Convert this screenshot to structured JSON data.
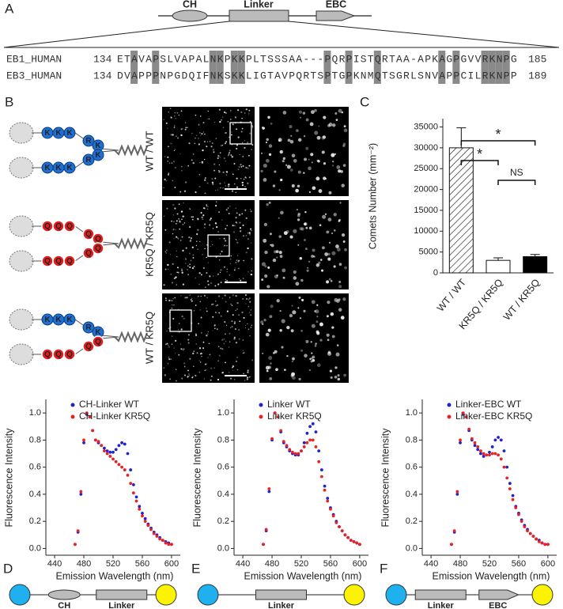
{
  "panel_a": {
    "panel": "A",
    "domains": [
      "CH",
      "Linker",
      "EBC"
    ],
    "alignment": [
      {
        "name": "EB1_HUMAN",
        "start": "134",
        "sequence": "ETAVAPSLVAPALNKPKKPLTSSSAA---PQRPISTQRTAA-APKAGPGVVRKNPG",
        "end": "185"
      },
      {
        "name": "EB3_HUMAN",
        "start": "134",
        "sequence": "DVAPPPNPGDQIFNKSKKLIGTAVPQRTSPTGPKNMQTSGRLSNVAPPCILRKNPP",
        "end": "189"
      }
    ]
  },
  "panel_b": {
    "panel": "B",
    "rows": [
      {
        "label": "WT / WT",
        "top": [
          "K",
          "K",
          "K",
          "R",
          "K"
        ],
        "bottom": [
          "K",
          "K",
          "K",
          "R",
          "K"
        ]
      },
      {
        "label": "KR5Q / KR5Q",
        "top": [
          "Q",
          "Q",
          "Q",
          "Q",
          "Q"
        ],
        "bottom": [
          "Q",
          "Q",
          "Q",
          "Q",
          "Q"
        ]
      },
      {
        "label": "WT / KR5Q",
        "top": [
          "K",
          "K",
          "K",
          "R",
          "K"
        ],
        "bottom": [
          "Q",
          "Q",
          "Q",
          "Q",
          "Q"
        ]
      }
    ]
  },
  "chart_data": [
    {
      "type": "bar",
      "panel": "C",
      "y_label": "Comets Number (mm⁻²)",
      "categories": [
        "WT / WT",
        "KR5Q / KR5Q",
        "WT / KR5Q"
      ],
      "values": [
        30000,
        3000,
        3900
      ],
      "errors": [
        4800,
        600,
        500
      ],
      "colors": [
        "#ffffff",
        "#ffffff",
        "#000000"
      ],
      "hatched": [
        true,
        false,
        false
      ],
      "ylim": [
        0,
        37000
      ],
      "yticks": [
        0,
        5000,
        10000,
        15000,
        20000,
        25000,
        30000,
        35000
      ],
      "annotations": [
        "*",
        "*",
        "NS"
      ]
    },
    {
      "type": "scatter",
      "panel": "D",
      "x_label": "Emission Wavelength (nm)",
      "y_label": "Fluorescence Intensity",
      "legend": "upper right",
      "construct": [
        "CH",
        "Linker"
      ],
      "x": [
        468,
        472,
        476,
        480,
        484,
        488,
        492,
        496,
        500,
        504,
        508,
        512,
        516,
        520,
        524,
        528,
        532,
        536,
        540,
        544,
        548,
        552,
        556,
        560,
        564,
        568,
        572,
        576,
        580,
        584,
        588,
        592,
        596,
        600
      ],
      "series": [
        {
          "name": "CH-Linker WT",
          "color": "#2222cc",
          "values": [
            0.03,
            0.12,
            0.4,
            0.78,
            0.99,
            0.97,
            0.87,
            0.8,
            0.78,
            0.76,
            0.74,
            0.72,
            0.71,
            0.71,
            0.73,
            0.76,
            0.78,
            0.77,
            0.7,
            0.58,
            0.47,
            0.38,
            0.31,
            0.26,
            0.22,
            0.18,
            0.15,
            0.12,
            0.1,
            0.08,
            0.06,
            0.05,
            0.04,
            0.03
          ]
        },
        {
          "name": "CH-Linker KR5Q",
          "color": "#e82222",
          "values": [
            0.03,
            0.13,
            0.42,
            0.8,
            1.0,
            0.97,
            0.87,
            0.8,
            0.79,
            0.76,
            0.72,
            0.7,
            0.68,
            0.66,
            0.64,
            0.62,
            0.6,
            0.58,
            0.54,
            0.48,
            0.41,
            0.35,
            0.29,
            0.24,
            0.2,
            0.17,
            0.14,
            0.11,
            0.09,
            0.07,
            0.06,
            0.04,
            0.03,
            0.03
          ]
        }
      ],
      "xlim": [
        428,
        612
      ],
      "ylim": [
        -0.05,
        1.1
      ],
      "xticks": [
        440,
        480,
        520,
        560,
        600
      ],
      "yticks": [
        {
          "value": 0,
          "label": "0.0"
        },
        {
          "value": 0.2,
          "label": "0.2"
        },
        {
          "value": 0.4,
          "label": "0.4"
        },
        {
          "value": 0.6,
          "label": "0.6"
        },
        {
          "value": 0.8,
          "label": "0.8"
        },
        {
          "value": 1,
          "label": "1.0"
        }
      ]
    },
    {
      "type": "scatter",
      "panel": "E",
      "x_label": "Emission Wavelength (nm)",
      "y_label": "Fluorescence Intensity",
      "legend": "upper right",
      "construct": [
        "Linker"
      ],
      "x": [
        468,
        472,
        476,
        480,
        484,
        488,
        492,
        496,
        500,
        504,
        508,
        512,
        516,
        520,
        524,
        528,
        532,
        536,
        540,
        544,
        548,
        552,
        556,
        560,
        564,
        568,
        572,
        576,
        580,
        584,
        588,
        592,
        596,
        600
      ],
      "series": [
        {
          "name": "Linker WT",
          "color": "#2222cc",
          "values": [
            0.03,
            0.13,
            0.42,
            0.8,
            1.0,
            0.97,
            0.86,
            0.78,
            0.75,
            0.72,
            0.7,
            0.69,
            0.69,
            0.72,
            0.78,
            0.85,
            0.9,
            0.92,
            0.86,
            0.72,
            0.58,
            0.46,
            0.37,
            0.3,
            0.25,
            0.2,
            0.16,
            0.13,
            0.1,
            0.08,
            0.06,
            0.05,
            0.04,
            0.03
          ]
        },
        {
          "name": "Linker KR5Q",
          "color": "#e82222",
          "values": [
            0.03,
            0.14,
            0.44,
            0.81,
            1.0,
            0.97,
            0.87,
            0.79,
            0.76,
            0.73,
            0.71,
            0.7,
            0.7,
            0.72,
            0.75,
            0.78,
            0.8,
            0.8,
            0.75,
            0.64,
            0.53,
            0.43,
            0.35,
            0.29,
            0.24,
            0.19,
            0.16,
            0.13,
            0.1,
            0.08,
            0.06,
            0.05,
            0.04,
            0.03
          ]
        }
      ],
      "xlim": [
        428,
        612
      ],
      "ylim": [
        -0.05,
        1.1
      ],
      "xticks": [
        440,
        480,
        520,
        560,
        600
      ],
      "yticks": [
        {
          "value": 0,
          "label": "0.0"
        },
        {
          "value": 0.2,
          "label": "0.2"
        },
        {
          "value": 0.4,
          "label": "0.4"
        },
        {
          "value": 0.6,
          "label": "0.6"
        },
        {
          "value": 0.8,
          "label": "0.8"
        },
        {
          "value": 1,
          "label": "1.0"
        }
      ]
    },
    {
      "type": "scatter",
      "panel": "F",
      "x_label": "Emission Wavelength (nm)",
      "y_label": "Fluorescence Intensity",
      "legend": "upper right",
      "construct": [
        "Linker",
        "EBC"
      ],
      "x": [
        468,
        472,
        476,
        480,
        484,
        488,
        492,
        496,
        500,
        504,
        508,
        512,
        516,
        520,
        524,
        528,
        532,
        536,
        540,
        544,
        548,
        552,
        556,
        560,
        564,
        568,
        572,
        576,
        580,
        584,
        588,
        592,
        596,
        600
      ],
      "series": [
        {
          "name": "Linker-EBC WT",
          "color": "#2222cc",
          "values": [
            0.03,
            0.12,
            0.4,
            0.78,
            0.99,
            0.97,
            0.87,
            0.8,
            0.76,
            0.73,
            0.7,
            0.68,
            0.69,
            0.71,
            0.75,
            0.8,
            0.82,
            0.8,
            0.72,
            0.6,
            0.48,
            0.39,
            0.31,
            0.26,
            0.21,
            0.17,
            0.14,
            0.11,
            0.09,
            0.07,
            0.06,
            0.04,
            0.03,
            0.03
          ]
        },
        {
          "name": "Linker-EBC KR5Q",
          "color": "#e82222",
          "values": [
            0.03,
            0.13,
            0.42,
            0.8,
            1.0,
            0.97,
            0.88,
            0.81,
            0.78,
            0.75,
            0.72,
            0.7,
            0.69,
            0.69,
            0.7,
            0.7,
            0.69,
            0.66,
            0.6,
            0.52,
            0.44,
            0.36,
            0.3,
            0.25,
            0.2,
            0.16,
            0.13,
            0.11,
            0.09,
            0.07,
            0.05,
            0.04,
            0.03,
            0.03
          ]
        }
      ],
      "xlim": [
        428,
        612
      ],
      "ylim": [
        -0.05,
        1.1
      ],
      "xticks": [
        440,
        480,
        520,
        560,
        600
      ],
      "yticks": [
        {
          "value": 0,
          "label": "0.0"
        },
        {
          "value": 0.2,
          "label": "0.2"
        },
        {
          "value": 0.4,
          "label": "0.4"
        },
        {
          "value": 0.6,
          "label": "0.6"
        },
        {
          "value": 0.8,
          "label": "0.8"
        },
        {
          "value": 1,
          "label": "1.0"
        }
      ]
    }
  ]
}
